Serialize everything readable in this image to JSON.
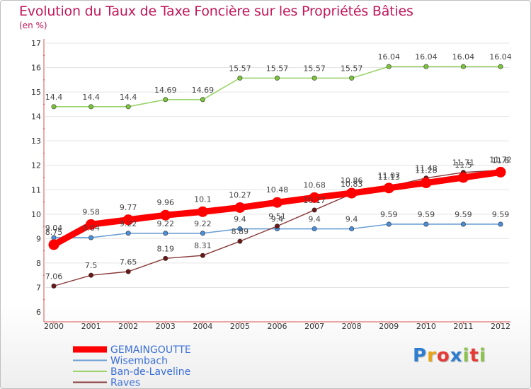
{
  "title": "Evolution du Taux de Taxe Foncière sur les Propriétés Bâties",
  "unit_label": "(en %)",
  "logo": {
    "text": "Proxiti",
    "letter_colors": [
      "#2e7dd1",
      "#e8a317",
      "#e53935",
      "#2e7dd1",
      "#8bc34a",
      "#e53935",
      "#8bc34a"
    ]
  },
  "colors": {
    "axis": "#d9534f",
    "grid": "#e4e4e4",
    "legend_text": "#3a6fd8"
  },
  "chart_data": {
    "type": "line",
    "x": [
      "2000",
      "2001",
      "2002",
      "2003",
      "2004",
      "2005",
      "2006",
      "2007",
      "2008",
      "2009",
      "2010",
      "2011",
      "2012"
    ],
    "ylim": [
      6,
      17
    ],
    "yticks": [
      6,
      7,
      8,
      9,
      10,
      11,
      12,
      13,
      14,
      15,
      16,
      17
    ],
    "grid": "horizontal",
    "legend_position": "bottom-left",
    "series": [
      {
        "name": "GEMAINGOUTTE",
        "color": "#ff0000",
        "marker_color": "#ff0000",
        "width": 9,
        "values": [
          8.75,
          9.58,
          9.77,
          9.96,
          10.1,
          10.27,
          10.48,
          10.68,
          10.86,
          11.07,
          11.28,
          11.5,
          11.72
        ],
        "labels": [
          "8.75",
          "9.58",
          "9.77",
          "9.96",
          "10.1",
          "10.27",
          "10.48",
          "10.68",
          "10.86",
          "11.07",
          "11.28",
          "11.5",
          "11.72"
        ]
      },
      {
        "name": "Wisembach",
        "color": "#6a9ed4",
        "marker_color": "#4a8ed8",
        "width": 1.6,
        "values": [
          9.04,
          9.04,
          9.22,
          9.22,
          9.22,
          9.4,
          9.4,
          9.4,
          9.4,
          9.59,
          9.59,
          9.59,
          9.59
        ],
        "labels": [
          "9.04",
          "9.04",
          "9.22",
          "9.22",
          "9.22",
          "9.4",
          "9.4",
          "9.4",
          "9.4",
          "9.59",
          "9.59",
          "9.59",
          "9.59"
        ]
      },
      {
        "name": "Ban-de-Laveline",
        "color": "#9ad46a",
        "marker_color": "#7cc43c",
        "width": 1.6,
        "values": [
          14.4,
          14.4,
          14.4,
          14.69,
          14.69,
          15.57,
          15.57,
          15.57,
          15.57,
          16.04,
          16.04,
          16.04,
          16.04
        ],
        "labels": [
          "14.4",
          "14.4",
          "14.4",
          "14.69",
          "14.69",
          "15.57",
          "15.57",
          "15.57",
          "15.57",
          "16.04",
          "16.04",
          "16.04",
          "16.04"
        ]
      },
      {
        "name": "Raves",
        "color": "#8a3a3a",
        "marker_color": "#6b1616",
        "width": 1.4,
        "values": [
          7.06,
          7.5,
          7.65,
          8.19,
          8.31,
          8.89,
          9.51,
          10.17,
          10.83,
          11.13,
          11.48,
          11.71,
          11.8
        ],
        "labels": [
          "7.06",
          "7.5",
          "7.65",
          "8.19",
          "8.31",
          "8.89",
          "9.51",
          "10.17",
          "10.83",
          "11.13",
          "11.48",
          "11.71",
          "11.8"
        ]
      }
    ]
  }
}
